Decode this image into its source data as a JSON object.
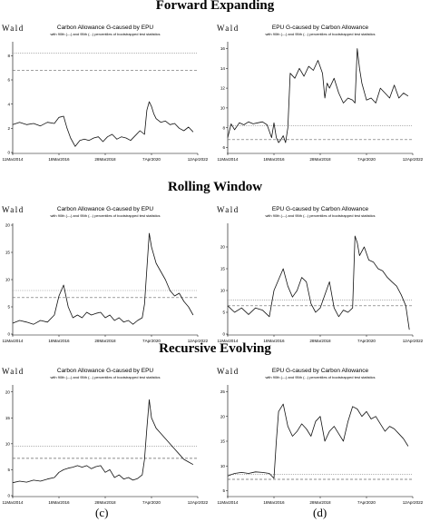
{
  "sections": [
    {
      "title": "Forward Expanding"
    },
    {
      "title": "Rolling Window"
    },
    {
      "title": "Recursive Evolving"
    }
  ],
  "captions": [
    "(c)",
    "(d)"
  ],
  "chart_data": [
    {
      "type": "line",
      "section": "Forward Expanding",
      "panel": "left",
      "title": "Carbon Allowance G-caused by EPU",
      "subtitle": "with 90th (---) and 95th (...) percentiles of bootstrapped test statistics",
      "ylabel": "Wald",
      "ylim": [
        0,
        9
      ],
      "yticks": [
        0,
        2,
        4,
        6,
        8
      ],
      "xticks": [
        "11Mar2014",
        "18Mar2016",
        "28Mar2018",
        "7Apr2020",
        "12Apr2022"
      ],
      "xlim": [
        0,
        8
      ],
      "p90": 6.8,
      "p95": 8.2,
      "series": [
        {
          "x": [
            0,
            0.3,
            0.6,
            0.9,
            1.2,
            1.5,
            1.8,
            2.0,
            2.2,
            2.35,
            2.5,
            2.7,
            2.9,
            3.1,
            3.3,
            3.5,
            3.7,
            3.9,
            4.1,
            4.3,
            4.5,
            4.7,
            4.9,
            5.1,
            5.3,
            5.5,
            5.7,
            5.75,
            5.8,
            5.9,
            6.0,
            6.1,
            6.2,
            6.4,
            6.6,
            6.8,
            7.0,
            7.2,
            7.4,
            7.6,
            7.8
          ],
          "y": [
            2.3,
            2.5,
            2.3,
            2.4,
            2.2,
            2.5,
            2.4,
            2.9,
            3.0,
            2.0,
            1.2,
            0.5,
            1.0,
            1.1,
            1.0,
            1.2,
            1.3,
            0.9,
            1.3,
            1.5,
            1.1,
            1.3,
            1.2,
            1.0,
            1.4,
            1.8,
            1.5,
            2.5,
            3.5,
            4.2,
            3.8,
            3.2,
            2.8,
            2.5,
            2.6,
            2.3,
            2.4,
            2.0,
            1.8,
            2.1,
            1.7
          ]
        }
      ]
    },
    {
      "type": "line",
      "section": "Forward Expanding",
      "panel": "right",
      "title": "EPU G-caused by Carbon Allowance",
      "subtitle": "with 90th (---) and 95th (...) percentiles of bootstrapped test statistics",
      "ylabel": "Wald",
      "ylim": [
        5.5,
        16.5
      ],
      "yticks": [
        6,
        8,
        10,
        12,
        14,
        16
      ],
      "xticks": [
        "11Mar2014",
        "18Mar2016",
        "28Mar2018",
        "7Apr2020",
        "12Apr2022"
      ],
      "xlim": [
        0,
        8
      ],
      "p90": 6.8,
      "p95": 8.2,
      "series": [
        {
          "x": [
            0,
            0.15,
            0.3,
            0.5,
            0.7,
            0.9,
            1.1,
            1.3,
            1.5,
            1.7,
            1.9,
            2.0,
            2.1,
            2.2,
            2.3,
            2.4,
            2.5,
            2.6,
            2.7,
            2.9,
            3.1,
            3.3,
            3.5,
            3.7,
            3.9,
            4.1,
            4.2,
            4.3,
            4.4,
            4.6,
            4.8,
            5.0,
            5.2,
            5.4,
            5.5,
            5.6,
            5.7,
            5.8,
            6.0,
            6.2,
            6.4,
            6.6,
            6.8,
            7.0,
            7.2,
            7.4,
            7.6,
            7.8
          ],
          "y": [
            7.0,
            8.4,
            7.8,
            8.5,
            8.3,
            8.6,
            8.4,
            8.5,
            8.6,
            8.3,
            7.0,
            8.5,
            7.0,
            6.5,
            6.8,
            7.2,
            6.5,
            8.0,
            13.5,
            13.0,
            14.0,
            13.2,
            14.2,
            13.8,
            14.8,
            13.5,
            11.0,
            12.5,
            12.0,
            13.0,
            11.5,
            10.5,
            11.0,
            10.8,
            10.5,
            16.0,
            14.0,
            12.5,
            10.8,
            11.0,
            10.5,
            12.0,
            11.5,
            11.0,
            12.3,
            11.0,
            11.5,
            11.2
          ]
        }
      ]
    },
    {
      "type": "line",
      "section": "Rolling Window",
      "panel": "left",
      "title": "Carbon Allowance G-caused by EPU",
      "subtitle": "with 90th (---) and 95th (...) percentiles of bootstrapped test statistics",
      "ylabel": "Wald",
      "ylim": [
        0,
        20
      ],
      "yticks": [
        0,
        5,
        10,
        15,
        20
      ],
      "xticks": [
        "11Mar2014",
        "18Mar2016",
        "28Mar2018",
        "7Apr2020",
        "12Apr2022"
      ],
      "xlim": [
        0,
        8
      ],
      "p90": 6.7,
      "p95": 8.0,
      "series": [
        {
          "x": [
            0,
            0.3,
            0.6,
            0.9,
            1.2,
            1.5,
            1.8,
            2.0,
            2.2,
            2.4,
            2.6,
            2.8,
            3.0,
            3.2,
            3.4,
            3.6,
            3.8,
            4.0,
            4.2,
            4.4,
            4.6,
            4.8,
            5.0,
            5.2,
            5.4,
            5.6,
            5.7,
            5.8,
            5.9,
            6.0,
            6.2,
            6.4,
            6.6,
            6.8,
            7.0,
            7.2,
            7.4,
            7.6,
            7.8
          ],
          "y": [
            2.0,
            2.5,
            2.2,
            1.8,
            2.5,
            2.2,
            3.5,
            7.0,
            9.0,
            5.0,
            3.0,
            3.5,
            3.0,
            4.0,
            3.5,
            3.8,
            4.0,
            3.0,
            3.5,
            2.5,
            3.0,
            2.2,
            2.5,
            1.8,
            2.5,
            3.0,
            5.5,
            12.0,
            18.5,
            16.0,
            13.0,
            11.5,
            10.0,
            8.0,
            7.0,
            7.5,
            6.0,
            5.0,
            3.5
          ]
        }
      ]
    },
    {
      "type": "line",
      "section": "Rolling Window",
      "panel": "right",
      "title": "EPU G-caused by Carbon Allowance",
      "subtitle": "with 90th (---) and 95th (...) percentiles of bootstrapped test statistics",
      "ylabel": "Wald",
      "ylim": [
        0,
        25
      ],
      "yticks": [
        0,
        5,
        10,
        15,
        20
      ],
      "xticks": [
        "11Mar2014",
        "18Mar2016",
        "28Mar2018",
        "7Apr2020",
        "12Apr2022"
      ],
      "xlim": [
        0,
        8
      ],
      "p90": 6.5,
      "p95": 7.8,
      "series": [
        {
          "x": [
            0,
            0.3,
            0.6,
            0.9,
            1.2,
            1.5,
            1.8,
            2.0,
            2.2,
            2.4,
            2.6,
            2.8,
            3.0,
            3.2,
            3.4,
            3.6,
            3.8,
            4.0,
            4.2,
            4.4,
            4.6,
            4.8,
            5.0,
            5.2,
            5.4,
            5.5,
            5.6,
            5.7,
            5.9,
            6.1,
            6.3,
            6.5,
            6.7,
            6.9,
            7.1,
            7.3,
            7.5,
            7.7,
            7.85
          ],
          "y": [
            6.5,
            5.0,
            6.0,
            4.5,
            6.0,
            5.5,
            4.0,
            10.0,
            12.5,
            15.0,
            11.0,
            8.5,
            10.0,
            13.0,
            12.0,
            7.0,
            5.0,
            6.0,
            9.0,
            12.0,
            6.0,
            4.0,
            5.5,
            5.0,
            6.0,
            22.5,
            21.0,
            18.0,
            20.0,
            17.0,
            16.5,
            15.0,
            14.5,
            13.0,
            12.0,
            11.0,
            9.0,
            6.5,
            1.0
          ]
        }
      ]
    },
    {
      "type": "line",
      "section": "Recursive Evolving",
      "panel": "left",
      "title": "Carbon Allowance G-caused by EPU",
      "subtitle": "with 90th (---) and 95th (...) percentiles of bootstrapped test statistics",
      "ylabel": "Wald",
      "ylim": [
        0,
        21
      ],
      "yticks": [
        0,
        5,
        10,
        15,
        20
      ],
      "xticks": [
        "11Mar2014",
        "18Mar2016",
        "28Mar2018",
        "7Apr2020",
        "12Apr2022"
      ],
      "xlim": [
        0,
        8
      ],
      "p90": 7.2,
      "p95": 9.5,
      "series": [
        {
          "x": [
            0,
            0.3,
            0.6,
            0.9,
            1.2,
            1.5,
            1.8,
            2.0,
            2.2,
            2.4,
            2.6,
            2.8,
            3.0,
            3.2,
            3.4,
            3.6,
            3.8,
            4.0,
            4.2,
            4.4,
            4.6,
            4.8,
            5.0,
            5.2,
            5.4,
            5.6,
            5.7,
            5.8,
            5.9,
            6.0,
            6.2,
            6.4,
            6.6,
            6.8,
            7.0,
            7.2,
            7.4,
            7.6,
            7.8
          ],
          "y": [
            2.5,
            2.8,
            2.6,
            3.0,
            2.8,
            3.2,
            3.5,
            4.5,
            5.0,
            5.3,
            5.5,
            5.8,
            5.5,
            5.8,
            5.2,
            5.6,
            5.8,
            4.5,
            5.0,
            3.5,
            4.0,
            3.2,
            3.5,
            3.0,
            3.3,
            4.0,
            7.0,
            13.0,
            18.5,
            15.0,
            13.0,
            12.0,
            11.0,
            10.0,
            9.0,
            8.0,
            7.0,
            6.5,
            6.0
          ]
        }
      ]
    },
    {
      "type": "line",
      "section": "Recursive Evolving",
      "panel": "right",
      "title": "EPU G-caused by Carbon Allowance",
      "subtitle": "with 90th (---) and 95th (...) percentiles of bootstrapped test statistics",
      "ylabel": "Wald",
      "ylim": [
        4,
        26
      ],
      "yticks": [
        5,
        10,
        15,
        20,
        25
      ],
      "xticks": [
        "11Mar2014",
        "18Mar2016",
        "28Mar2018",
        "7Apr2020",
        "12Apr2022"
      ],
      "xlim": [
        0,
        8
      ],
      "p90": 7.3,
      "p95": 8.3,
      "series": [
        {
          "x": [
            0,
            0.3,
            0.6,
            0.9,
            1.2,
            1.5,
            1.8,
            2.0,
            2.1,
            2.2,
            2.4,
            2.6,
            2.8,
            3.0,
            3.2,
            3.4,
            3.6,
            3.8,
            4.0,
            4.2,
            4.4,
            4.6,
            4.8,
            5.0,
            5.2,
            5.4,
            5.6,
            5.8,
            6.0,
            6.2,
            6.4,
            6.6,
            6.8,
            7.0,
            7.2,
            7.4,
            7.6,
            7.8
          ],
          "y": [
            8.0,
            8.5,
            8.7,
            8.5,
            8.8,
            8.7,
            8.5,
            7.5,
            15.0,
            21.0,
            22.5,
            18.0,
            16.0,
            17.0,
            18.5,
            17.5,
            16.0,
            19.0,
            20.0,
            15.0,
            17.0,
            18.0,
            16.5,
            15.0,
            19.0,
            22.0,
            21.5,
            20.0,
            21.0,
            19.5,
            20.0,
            18.5,
            17.0,
            18.0,
            17.5,
            16.5,
            15.5,
            14.0
          ]
        }
      ]
    }
  ]
}
